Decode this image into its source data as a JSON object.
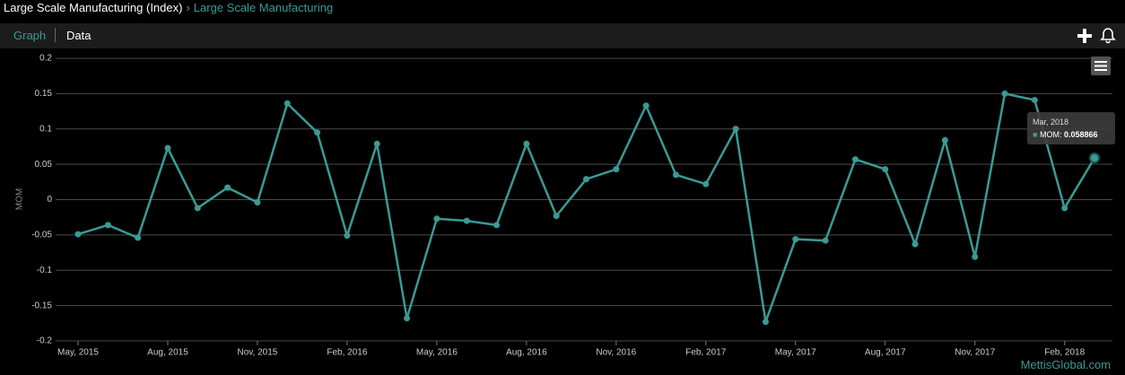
{
  "header": {
    "title": "Large Scale Manufacturing (Index)",
    "separator": "›",
    "subtitle": "Large Scale Manufacturing"
  },
  "tabs": [
    "Graph",
    "Data"
  ],
  "watermark": "MettisGlobal.com",
  "chart_data": {
    "type": "line",
    "y_label": "MOM",
    "categories": [
      "May, 2015",
      null,
      null,
      "Aug, 2015",
      null,
      null,
      "Nov, 2015",
      null,
      null,
      "Feb, 2016",
      null,
      null,
      "May, 2016",
      null,
      null,
      "Aug, 2016",
      null,
      null,
      "Nov, 2016",
      null,
      null,
      "Feb, 2017",
      null,
      null,
      "May, 2017",
      null,
      null,
      "Aug, 2017",
      null,
      null,
      "Nov, 2017",
      null,
      null,
      "Feb, 2018",
      null
    ],
    "series": [
      {
        "name": "MOM",
        "color": "#3a9a96",
        "values": [
          -0.049,
          -0.036,
          -0.054,
          0.073,
          -0.012,
          0.017,
          -0.004,
          0.136,
          0.095,
          -0.051,
          0.079,
          -0.168,
          -0.027,
          -0.03,
          -0.036,
          0.079,
          -0.023,
          0.029,
          0.043,
          0.133,
          0.035,
          0.022,
          0.1,
          -0.173,
          -0.056,
          -0.058,
          0.057,
          0.043,
          -0.063,
          0.084,
          -0.081,
          0.15,
          0.141,
          -0.012,
          0.058866
        ]
      }
    ],
    "ylim": [
      -0.2,
      0.2
    ],
    "yticks": [
      -0.2,
      -0.15,
      -0.1,
      -0.05,
      0,
      0.05,
      0.1,
      0.15,
      0.2
    ],
    "grid": true,
    "tooltip": {
      "date": "Mar, 2018",
      "label": "MOM:",
      "value": 0.058866
    }
  }
}
